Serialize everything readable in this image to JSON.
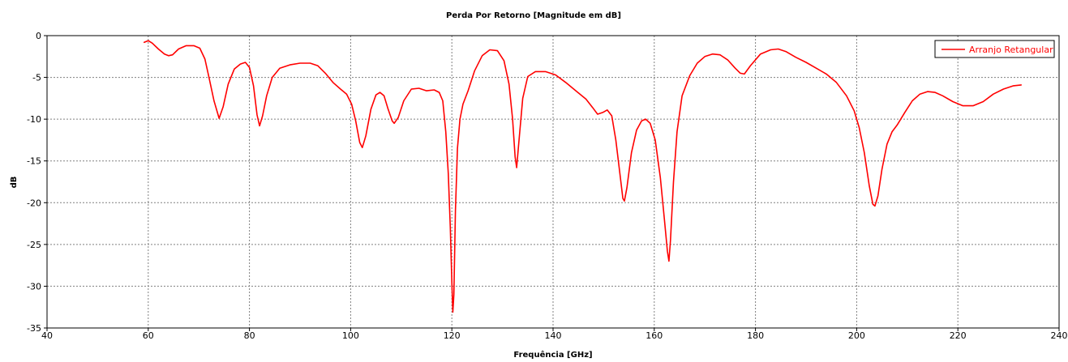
{
  "chart_data": {
    "type": "line",
    "title": "Perda Por Retorno [Magnitude em dB]",
    "xlabel": "Frequência [GHz]",
    "ylabel": "dB",
    "xlim": [
      40,
      240
    ],
    "ylim": [
      -35,
      0
    ],
    "xticks": [
      40,
      60,
      80,
      100,
      120,
      140,
      160,
      180,
      200,
      220,
      240
    ],
    "yticks": [
      0,
      -5,
      -10,
      -15,
      -20,
      -25,
      -30,
      -35
    ],
    "grid": true,
    "legend": {
      "position": "top-right"
    },
    "colors": {
      "series": "#ff0000",
      "grid": "#808080",
      "axis": "#000000"
    },
    "series": [
      {
        "name": "Arranjo Retangular",
        "color": "#ff0000",
        "points": [
          [
            59.2,
            -0.8
          ],
          [
            60.0,
            -0.6
          ],
          [
            60.8,
            -0.9
          ],
          [
            62.0,
            -1.6
          ],
          [
            63.2,
            -2.2
          ],
          [
            64.0,
            -2.4
          ],
          [
            64.8,
            -2.3
          ],
          [
            66.0,
            -1.6
          ],
          [
            67.5,
            -1.2
          ],
          [
            69.0,
            -1.2
          ],
          [
            70.2,
            -1.5
          ],
          [
            71.2,
            -2.8
          ],
          [
            72.0,
            -5.0
          ],
          [
            73.0,
            -7.8
          ],
          [
            74.0,
            -9.9
          ],
          [
            74.8,
            -8.5
          ],
          [
            75.8,
            -5.8
          ],
          [
            77.0,
            -4.0
          ],
          [
            78.2,
            -3.4
          ],
          [
            79.2,
            -3.2
          ],
          [
            80.0,
            -3.8
          ],
          [
            80.8,
            -6.0
          ],
          [
            81.5,
            -9.5
          ],
          [
            82.0,
            -10.8
          ],
          [
            82.6,
            -9.6
          ],
          [
            83.4,
            -7.2
          ],
          [
            84.5,
            -5.0
          ],
          [
            86.0,
            -3.9
          ],
          [
            88.0,
            -3.5
          ],
          [
            90.0,
            -3.3
          ],
          [
            92.0,
            -3.3
          ],
          [
            93.5,
            -3.6
          ],
          [
            95.0,
            -4.5
          ],
          [
            96.5,
            -5.6
          ],
          [
            98.0,
            -6.4
          ],
          [
            99.2,
            -7.0
          ],
          [
            100.2,
            -8.2
          ],
          [
            101.0,
            -10.2
          ],
          [
            101.8,
            -12.8
          ],
          [
            102.3,
            -13.4
          ],
          [
            103.0,
            -12.0
          ],
          [
            104.0,
            -8.8
          ],
          [
            105.0,
            -7.1
          ],
          [
            105.8,
            -6.8
          ],
          [
            106.6,
            -7.2
          ],
          [
            107.4,
            -8.8
          ],
          [
            108.2,
            -10.2
          ],
          [
            108.6,
            -10.5
          ],
          [
            109.4,
            -9.8
          ],
          [
            110.5,
            -7.8
          ],
          [
            112.0,
            -6.4
          ],
          [
            113.5,
            -6.3
          ],
          [
            115.0,
            -6.6
          ],
          [
            116.5,
            -6.5
          ],
          [
            117.5,
            -6.8
          ],
          [
            118.2,
            -7.8
          ],
          [
            118.8,
            -11.5
          ],
          [
            119.3,
            -16.5
          ],
          [
            119.7,
            -23.0
          ],
          [
            120.0,
            -29.5
          ],
          [
            120.2,
            -33.1
          ],
          [
            120.4,
            -31.0
          ],
          [
            120.7,
            -21.0
          ],
          [
            121.1,
            -13.5
          ],
          [
            121.6,
            -10.0
          ],
          [
            122.2,
            -8.2
          ],
          [
            123.2,
            -6.6
          ],
          [
            124.5,
            -4.2
          ],
          [
            126.0,
            -2.4
          ],
          [
            127.5,
            -1.7
          ],
          [
            129.0,
            -1.8
          ],
          [
            130.3,
            -3.0
          ],
          [
            131.3,
            -5.8
          ],
          [
            132.0,
            -10.0
          ],
          [
            132.5,
            -14.5
          ],
          [
            132.8,
            -15.8
          ],
          [
            133.2,
            -13.0
          ],
          [
            134.0,
            -7.5
          ],
          [
            135.0,
            -4.9
          ],
          [
            136.5,
            -4.3
          ],
          [
            138.5,
            -4.3
          ],
          [
            140.5,
            -4.7
          ],
          [
            142.5,
            -5.6
          ],
          [
            144.5,
            -6.6
          ],
          [
            146.5,
            -7.6
          ],
          [
            147.8,
            -8.6
          ],
          [
            148.8,
            -9.4
          ],
          [
            149.8,
            -9.2
          ],
          [
            150.7,
            -8.9
          ],
          [
            151.6,
            -9.6
          ],
          [
            152.4,
            -12.5
          ],
          [
            153.2,
            -16.5
          ],
          [
            153.8,
            -19.5
          ],
          [
            154.1,
            -19.8
          ],
          [
            154.6,
            -18.2
          ],
          [
            155.5,
            -14.0
          ],
          [
            156.5,
            -11.3
          ],
          [
            157.5,
            -10.2
          ],
          [
            158.3,
            -10.0
          ],
          [
            159.2,
            -10.5
          ],
          [
            160.2,
            -12.5
          ],
          [
            161.2,
            -17.0
          ],
          [
            162.0,
            -22.0
          ],
          [
            162.6,
            -25.8
          ],
          [
            162.9,
            -27.0
          ],
          [
            163.2,
            -24.5
          ],
          [
            163.8,
            -17.5
          ],
          [
            164.5,
            -11.5
          ],
          [
            165.5,
            -7.2
          ],
          [
            167.0,
            -4.8
          ],
          [
            168.5,
            -3.3
          ],
          [
            170.0,
            -2.5
          ],
          [
            171.5,
            -2.2
          ],
          [
            173.0,
            -2.3
          ],
          [
            174.5,
            -2.9
          ],
          [
            176.0,
            -3.9
          ],
          [
            177.0,
            -4.5
          ],
          [
            177.8,
            -4.6
          ],
          [
            179.0,
            -3.6
          ],
          [
            181.0,
            -2.2
          ],
          [
            183.0,
            -1.7
          ],
          [
            184.5,
            -1.6
          ],
          [
            186.0,
            -1.9
          ],
          [
            188.0,
            -2.6
          ],
          [
            190.0,
            -3.2
          ],
          [
            192.0,
            -3.9
          ],
          [
            194.0,
            -4.6
          ],
          [
            196.0,
            -5.6
          ],
          [
            198.0,
            -7.2
          ],
          [
            199.5,
            -9.0
          ],
          [
            200.5,
            -11.0
          ],
          [
            201.5,
            -14.0
          ],
          [
            202.5,
            -18.0
          ],
          [
            203.2,
            -20.2
          ],
          [
            203.6,
            -20.4
          ],
          [
            204.2,
            -19.2
          ],
          [
            205.0,
            -16.0
          ],
          [
            206.0,
            -13.0
          ],
          [
            207.0,
            -11.5
          ],
          [
            208.0,
            -10.7
          ],
          [
            209.5,
            -9.2
          ],
          [
            211.0,
            -7.8
          ],
          [
            212.5,
            -7.0
          ],
          [
            214.0,
            -6.7
          ],
          [
            215.5,
            -6.8
          ],
          [
            217.0,
            -7.2
          ],
          [
            219.0,
            -7.9
          ],
          [
            221.0,
            -8.4
          ],
          [
            223.0,
            -8.4
          ],
          [
            225.0,
            -7.9
          ],
          [
            227.0,
            -7.0
          ],
          [
            229.0,
            -6.4
          ],
          [
            231.0,
            -6.0
          ],
          [
            232.5,
            -5.9
          ]
        ]
      }
    ]
  }
}
